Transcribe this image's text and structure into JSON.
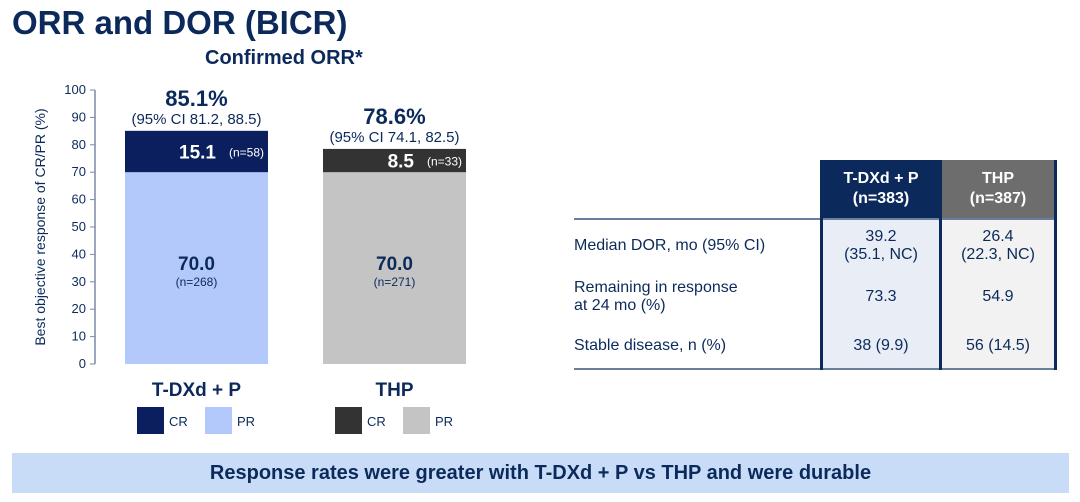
{
  "title": "ORR and DOR (BICR)",
  "subtitle": "Confirmed ORR*",
  "chart_data": {
    "type": "bar",
    "stacked": true,
    "ylabel": "Best objective response of CR/PR (%)",
    "ylim": [
      0,
      100
    ],
    "yticks": [
      0,
      10,
      20,
      30,
      40,
      50,
      60,
      70,
      80,
      90,
      100
    ],
    "categories": [
      "T-DXd + P",
      "THP"
    ],
    "groups": [
      {
        "category": "T-DXd + P",
        "total": "85.1%",
        "ci": "(95% CI 81.2, 88.5)",
        "segments": [
          {
            "name": "PR",
            "value": 70.0,
            "label": "70.0",
            "n": "(n=268)",
            "color": "#b3c9fb",
            "text_color": "#0b2a5b"
          },
          {
            "name": "CR",
            "value": 15.1,
            "label": "15.1",
            "n": "(n=58)",
            "color": "#0b1f5e",
            "text_color": "#ffffff"
          }
        ],
        "legend": [
          {
            "name": "CR",
            "color": "#0b1f5e"
          },
          {
            "name": "PR",
            "color": "#b3c9fb"
          }
        ]
      },
      {
        "category": "THP",
        "total": "78.6%",
        "ci": "(95% CI 74.1, 82.5)",
        "segments": [
          {
            "name": "PR",
            "value": 70.0,
            "label": "70.0",
            "n": "(n=271)",
            "color": "#c4c4c4",
            "text_color": "#0b2a5b"
          },
          {
            "name": "CR",
            "value": 8.5,
            "label": "8.5",
            "n": "(n=33)",
            "color": "#333333",
            "text_color": "#ffffff"
          }
        ],
        "legend": [
          {
            "name": "CR",
            "color": "#333333"
          },
          {
            "name": "PR",
            "color": "#c4c4c4"
          }
        ]
      }
    ]
  },
  "table": {
    "headers": [
      {
        "line1": "T-DXd + P",
        "line2": "(n=383)"
      },
      {
        "line1": "THP",
        "line2": "(n=387)"
      }
    ],
    "rows": [
      {
        "label": "Median DOR, mo (95% CI)",
        "v1": "39.2",
        "v1b": "(35.1, NC)",
        "v2": "26.4",
        "v2b": "(22.3, NC)"
      },
      {
        "label": "Remaining in response",
        "label2": "at 24 mo (%)",
        "v1": "73.3",
        "v2": "54.9"
      },
      {
        "label": "Stable disease, n (%)",
        "v1": "38 (9.9)",
        "v2": "56 (14.5)"
      }
    ]
  },
  "banner": "Response rates were greater with T-DXd + P vs THP and were durable"
}
